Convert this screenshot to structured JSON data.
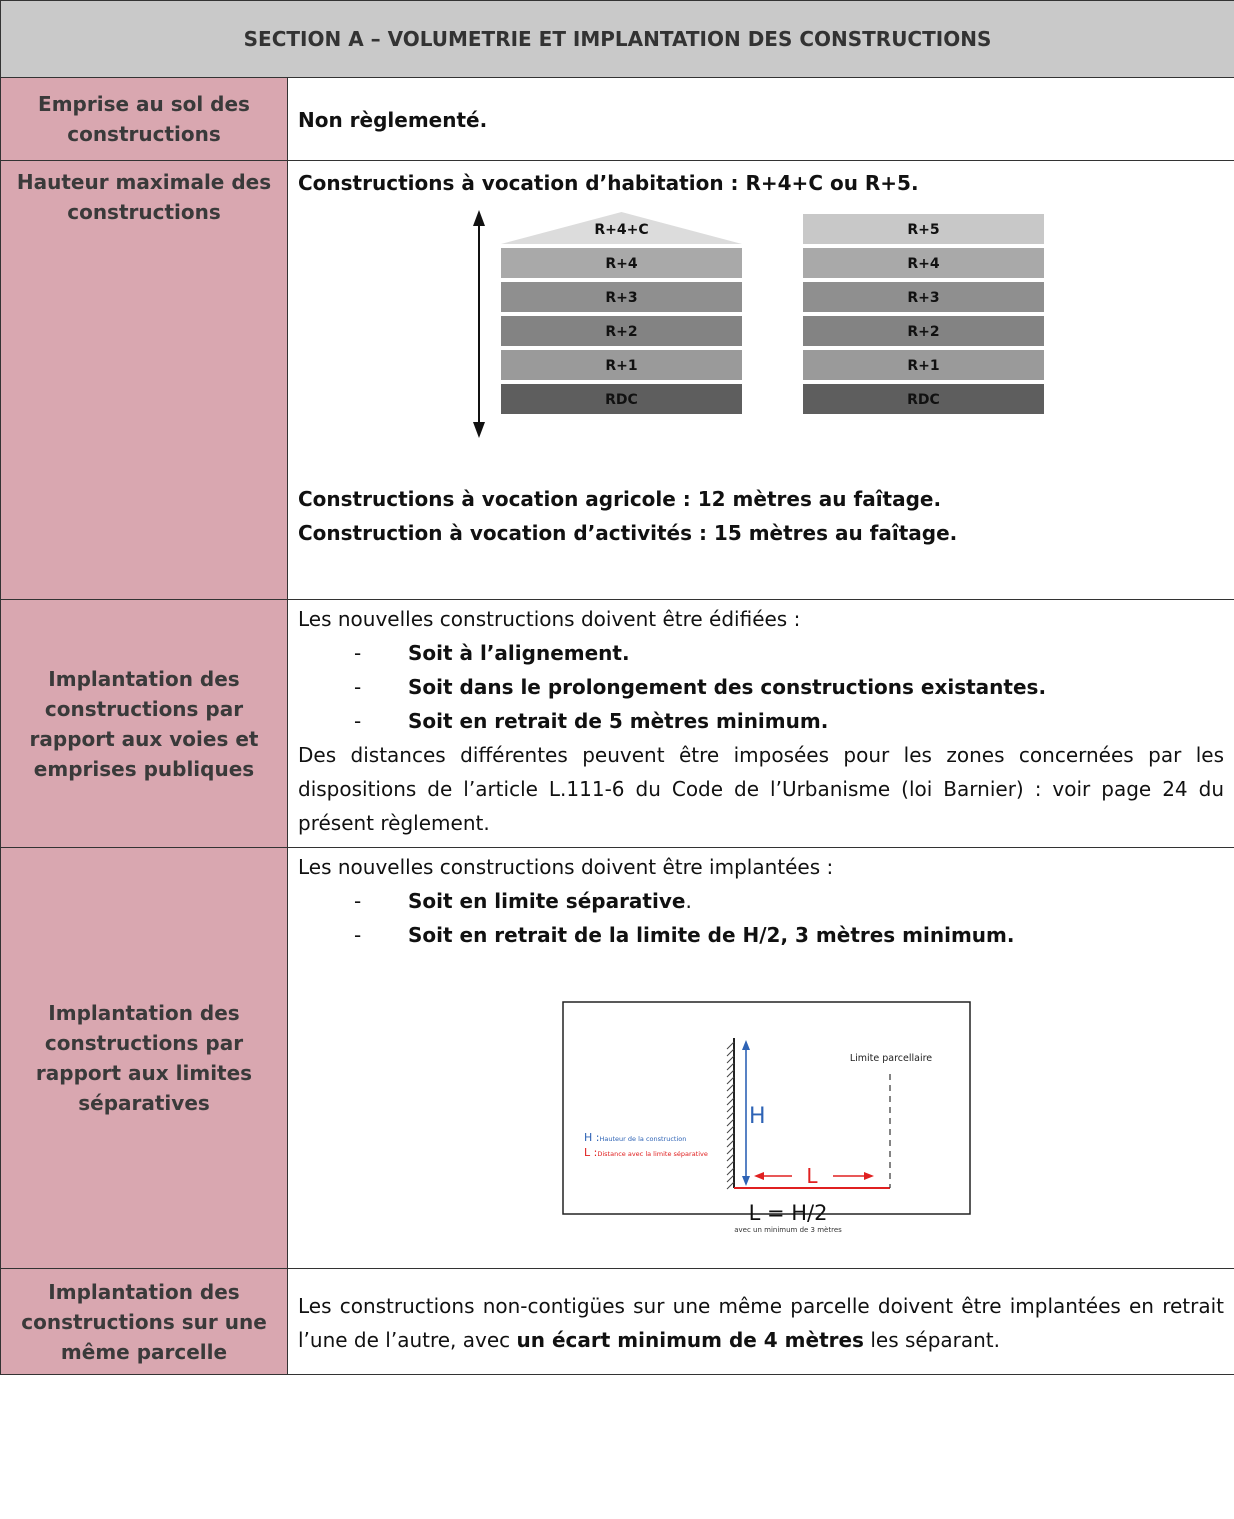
{
  "section_title": "SECTION A – VOLUMETRIE ET IMPLANTATION DES CONSTRUCTIONS",
  "rows": {
    "emprise": {
      "label": "Emprise au sol des constructions",
      "text": "Non règlementé."
    },
    "hauteur": {
      "label": "Hauteur maximale des constructions",
      "line1": "Constructions à vocation d’habitation : R+4+C ou R+5.",
      "line2": "Constructions à vocation agricole : 12 mètres au faîtage.",
      "line3": "Construction à vocation d’activités : 15 mètres au faîtage.",
      "diagram": {
        "left_levels": [
          "R+4+C",
          "R+4",
          "R+3",
          "R+2",
          "R+1",
          "RDC"
        ],
        "right_levels": [
          "R+5",
          "R+4",
          "R+3",
          "R+2",
          "R+1",
          "RDC"
        ]
      }
    },
    "voies": {
      "label": "Implantation des constructions par rapport aux voies et emprises publiques",
      "intro": "Les nouvelles constructions doivent être édifiées :",
      "bullets": [
        "Soit à l’alignement.",
        "Soit dans le prolongement des constructions existantes.",
        "Soit en retrait de 5 mètres minimum."
      ],
      "para": "Des distances différentes peuvent être imposées pour les zones concernées par les dispositions de l’article L.111-6 du Code de l’Urbanisme (loi Barnier) : voir page 24 du présent règlement."
    },
    "limites": {
      "label": "Implantation des constructions par rapport aux limites séparatives",
      "intro": "Les nouvelles constructions doivent être implantées :",
      "bullet1": "Soit en limite séparative",
      "bullet1_end": ".",
      "bullet2": "Soit en retrait de la limite de H/2, 3 mètres minimum.",
      "diagram": {
        "limite": "Limite parcellaire",
        "h_letter": "H",
        "h_label": "Hauteur de la construction",
        "l_letter": "L",
        "l_label": "Distance avec la limite séparative",
        "sep": ":",
        "formula": "L = H/2",
        "formula_note": "avec un minimum de 3 mètres"
      }
    },
    "parcelle": {
      "label": "Implantation des constructions sur une même parcelle",
      "text_before": "Les constructions non-contigües sur une même parcelle doivent être implantées en retrait l’une de l’autre, avec ",
      "text_bold": "un écart minimum de 4 mètres",
      "text_after": " les séparant."
    }
  },
  "colors": {
    "header_bg": "#c9c9c9",
    "label_bg": "#d9a7b0",
    "h_blue": "#2e63b5",
    "l_red": "#e02020"
  }
}
